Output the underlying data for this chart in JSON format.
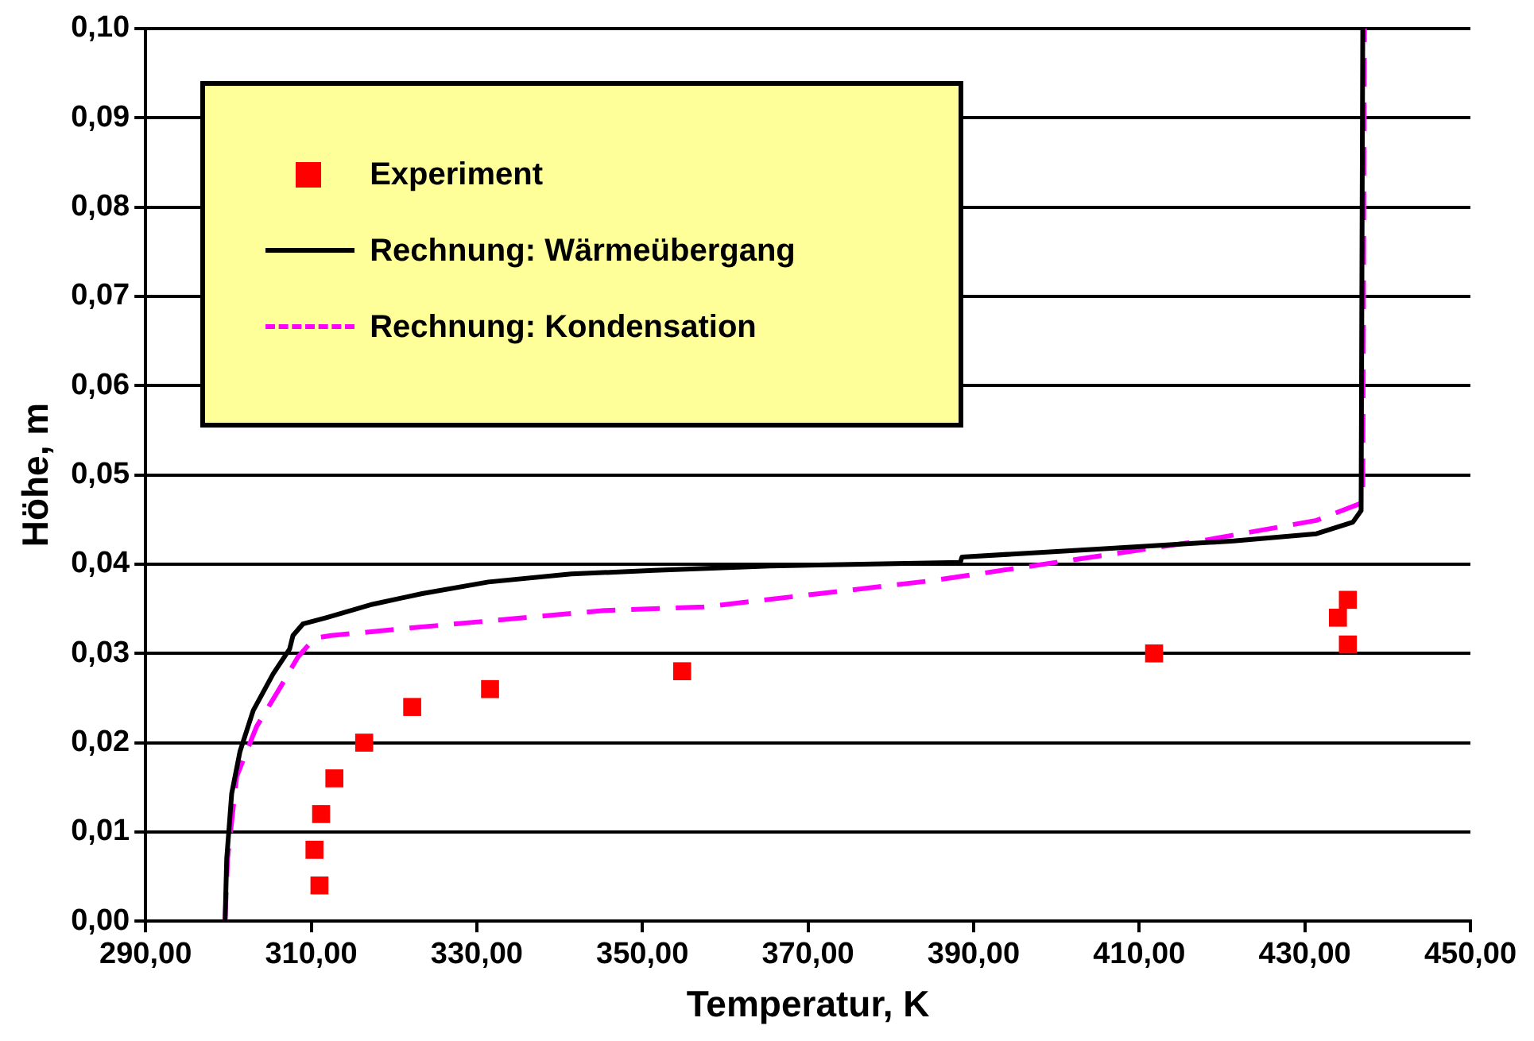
{
  "chart_data": {
    "type": "line",
    "xlabel": "Temperatur, K",
    "ylabel": "Höhe, m",
    "xlim": [
      290,
      450
    ],
    "ylim": [
      0,
      0.1
    ],
    "xticks": [
      {
        "value": 290,
        "label": "290,00"
      },
      {
        "value": 310,
        "label": "310,00"
      },
      {
        "value": 330,
        "label": "330,00"
      },
      {
        "value": 350,
        "label": "350,00"
      },
      {
        "value": 370,
        "label": "370,00"
      },
      {
        "value": 390,
        "label": "390,00"
      },
      {
        "value": 410,
        "label": "410,00"
      },
      {
        "value": 430,
        "label": "430,00"
      },
      {
        "value": 450,
        "label": "450,00"
      }
    ],
    "yticks": [
      {
        "value": 0,
        "label": "0,00"
      },
      {
        "value": 0.01,
        "label": "0,01"
      },
      {
        "value": 0.02,
        "label": "0,02"
      },
      {
        "value": 0.03,
        "label": "0,03"
      },
      {
        "value": 0.04,
        "label": "0,04"
      },
      {
        "value": 0.05,
        "label": "0,05"
      },
      {
        "value": 0.06,
        "label": "0,06"
      },
      {
        "value": 0.07,
        "label": "0,07"
      },
      {
        "value": 0.08,
        "label": "0,08"
      },
      {
        "value": 0.09,
        "label": "0,09"
      },
      {
        "value": 0.1,
        "label": "0,10"
      }
    ],
    "grid": "y",
    "legend": "top left",
    "series": [
      {
        "name": "Experiment",
        "type": "scatter",
        "marker": "square",
        "color": "#ff0000",
        "x": [
          310.4,
          311,
          311.2,
          312.8,
          316.4,
          322.2,
          331.6,
          354.8,
          411.8,
          434,
          435.2,
          435.2
        ],
        "values": [
          0.008,
          0.004,
          0.012,
          0.016,
          0.02,
          0.024,
          0.026,
          0.028,
          0.03,
          0.034,
          0.036,
          0.031
        ]
      },
      {
        "name": "Rechnung: Wärmeübergang",
        "type": "line",
        "marker": "none",
        "line_style": "solid",
        "color": "#000000",
        "x": [
          299.6,
          299.8,
          300.4,
          301.4,
          303,
          305.4,
          307.4,
          307.8,
          309,
          311.8,
          317.4,
          323.4,
          331.4,
          341.4,
          351.4,
          365.4,
          388.4,
          388.6,
          405.4,
          421.4,
          431.4,
          435.8,
          436.8,
          437
        ],
        "values": [
          0,
          0.007,
          0.0143,
          0.019,
          0.0236,
          0.0277,
          0.0305,
          0.032,
          0.0333,
          0.034,
          0.0355,
          0.0367,
          0.038,
          0.0389,
          0.0393,
          0.0398,
          0.0402,
          0.0408,
          0.0417,
          0.0426,
          0.0434,
          0.0447,
          0.046,
          0.1
        ]
      },
      {
        "name": "Rechnung: Kondensation",
        "type": "line",
        "marker": "none",
        "line_style": "dashed",
        "color": "#ff00ff",
        "x": [
          299.6,
          299.9,
          301,
          303.4,
          306.4,
          308.4,
          310.4,
          312.4,
          321.4,
          345.4,
          357.4,
          371.4,
          385.4,
          401.4,
          417.4,
          431.4,
          437,
          437.2
        ],
        "values": [
          0,
          0.007,
          0.0162,
          0.0218,
          0.0264,
          0.0296,
          0.0317,
          0.032,
          0.0328,
          0.0348,
          0.0352,
          0.0367,
          0.0382,
          0.0404,
          0.0426,
          0.0449,
          0.0469,
          0.1
        ]
      }
    ]
  }
}
